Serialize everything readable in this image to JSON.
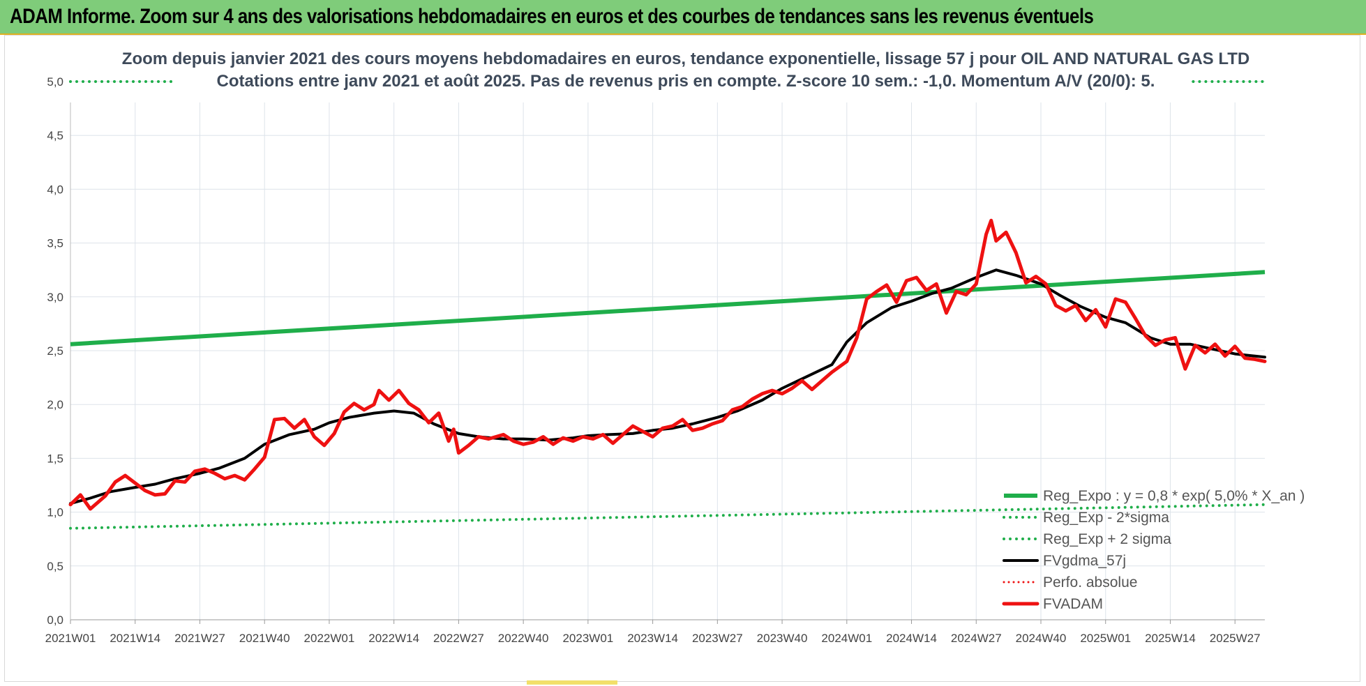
{
  "banner": {
    "title": "ADAM Informe. Zoom sur 4 ans des valorisations hebdomadaires en euros et des courbes de tendances sans les revenus éventuels"
  },
  "colors": {
    "banner_bg": "#7fcc7a",
    "trend": "#1fae4a",
    "fvgdma": "#000000",
    "fvadam": "#ee1111",
    "perfo": "#ee1111",
    "grid": "#dde3ea"
  },
  "chart_data": {
    "type": "line",
    "title_line1": "Zoom depuis janvier 2021 des cours moyens hebdomadaires en euros, tendance exponentielle, lissage 57 j pour OIL AND NATURAL GAS LTD",
    "title_line2": "Cotations entre janv 2021 et août 2025.  Pas de revenus pris en compte. Z-score 10 sem.: -1,0. Momentum A/V (20/0): 5.",
    "xlabel": "",
    "ylabel": "",
    "ylim": [
      0,
      5
    ],
    "y_ticks": [
      "0,0",
      "0,5",
      "1,0",
      "1,5",
      "2,0",
      "2,5",
      "3,0",
      "3,5",
      "4,0",
      "4,5",
      "5,0"
    ],
    "x_range": [
      "2021W01",
      "2025W33"
    ],
    "x_ticks": [
      "2021W01",
      "2021W14",
      "2021W27",
      "2021W40",
      "2022W01",
      "2022W14",
      "2022W27",
      "2022W40",
      "2023W01",
      "2023W14",
      "2023W27",
      "2023W40",
      "2024W01",
      "2024W14",
      "2024W27",
      "2024W40",
      "2025W01",
      "2025W14",
      "2025W27"
    ],
    "grid": true,
    "legend_position": "bottom-right",
    "series": [
      {
        "name": "Reg_Expo : y = 0,8 * exp( 5,0% *  X_an )",
        "style": "solid-thick",
        "points": [
          [
            "2021W01",
            2.56
          ],
          [
            "2025W33",
            3.23
          ]
        ]
      },
      {
        "name": "Reg_Exp - 2*sigma",
        "style": "dotted",
        "points": [
          [
            "2021W01",
            0.85
          ],
          [
            "2025W33",
            1.07
          ]
        ]
      },
      {
        "name": "Reg_Exp + 2 sigma",
        "style": "dotted",
        "points": [
          [
            "2021W01",
            5.0
          ],
          [
            "2021W40",
            5.0
          ],
          [
            "2025W01",
            5.0
          ],
          [
            "2025W33",
            5.0
          ]
        ],
        "note_visible_segments": [
          [
            "2021W01",
            "2021W22"
          ],
          [
            "2025W06",
            "2025W33"
          ]
        ]
      },
      {
        "name": "FVgdma_57j",
        "style": "solid",
        "points": [
          [
            "2021W01",
            1.08
          ],
          [
            "2021W05",
            1.13
          ],
          [
            "2021W09",
            1.19
          ],
          [
            "2021W14",
            1.23
          ],
          [
            "2021W18",
            1.26
          ],
          [
            "2021W22",
            1.31
          ],
          [
            "2021W27",
            1.36
          ],
          [
            "2021W31",
            1.41
          ],
          [
            "2021W36",
            1.5
          ],
          [
            "2021W40",
            1.63
          ],
          [
            "2021W45",
            1.72
          ],
          [
            "2021W50",
            1.77
          ],
          [
            "2022W01",
            1.83
          ],
          [
            "2022W05",
            1.88
          ],
          [
            "2022W10",
            1.92
          ],
          [
            "2022W14",
            1.94
          ],
          [
            "2022W18",
            1.92
          ],
          [
            "2022W22",
            1.82
          ],
          [
            "2022W27",
            1.73
          ],
          [
            "2022W31",
            1.7
          ],
          [
            "2022W36",
            1.68
          ],
          [
            "2022W40",
            1.68
          ],
          [
            "2022W45",
            1.67
          ],
          [
            "2022W50",
            1.69
          ],
          [
            "2023W01",
            1.71
          ],
          [
            "2023W05",
            1.72
          ],
          [
            "2023W10",
            1.73
          ],
          [
            "2023W14",
            1.76
          ],
          [
            "2023W18",
            1.78
          ],
          [
            "2023W22",
            1.82
          ],
          [
            "2023W27",
            1.88
          ],
          [
            "2023W31",
            1.94
          ],
          [
            "2023W36",
            2.04
          ],
          [
            "2023W40",
            2.15
          ],
          [
            "2023W45",
            2.26
          ],
          [
            "2023W50",
            2.37
          ],
          [
            "2024W01",
            2.58
          ],
          [
            "2024W05",
            2.76
          ],
          [
            "2024W10",
            2.9
          ],
          [
            "2024W14",
            2.96
          ],
          [
            "2024W18",
            3.03
          ],
          [
            "2024W22",
            3.08
          ],
          [
            "2024W27",
            3.18
          ],
          [
            "2024W31",
            3.25
          ],
          [
            "2024W35",
            3.2
          ],
          [
            "2024W40",
            3.12
          ],
          [
            "2024W44",
            3.01
          ],
          [
            "2024W48",
            2.91
          ],
          [
            "2025W01",
            2.81
          ],
          [
            "2025W05",
            2.76
          ],
          [
            "2025W10",
            2.62
          ],
          [
            "2025W14",
            2.56
          ],
          [
            "2025W18",
            2.56
          ],
          [
            "2025W22",
            2.52
          ],
          [
            "2025W27",
            2.47
          ],
          [
            "2025W33",
            2.44
          ]
        ]
      },
      {
        "name": "Perfo. absolue",
        "style": "dotted",
        "points": []
      },
      {
        "name": "FVADAM",
        "style": "solid-thick",
        "points": [
          [
            "2021W01",
            1.07
          ],
          [
            "2021W03",
            1.16
          ],
          [
            "2021W05",
            1.03
          ],
          [
            "2021W08",
            1.15
          ],
          [
            "2021W10",
            1.28
          ],
          [
            "2021W12",
            1.34
          ],
          [
            "2021W14",
            1.27
          ],
          [
            "2021W16",
            1.2
          ],
          [
            "2021W18",
            1.16
          ],
          [
            "2021W20",
            1.17
          ],
          [
            "2021W22",
            1.29
          ],
          [
            "2021W24",
            1.28
          ],
          [
            "2021W26",
            1.38
          ],
          [
            "2021W28",
            1.4
          ],
          [
            "2021W30",
            1.36
          ],
          [
            "2021W32",
            1.31
          ],
          [
            "2021W34",
            1.34
          ],
          [
            "2021W36",
            1.3
          ],
          [
            "2021W38",
            1.4
          ],
          [
            "2021W40",
            1.51
          ],
          [
            "2021W42",
            1.86
          ],
          [
            "2021W44",
            1.87
          ],
          [
            "2021W46",
            1.78
          ],
          [
            "2021W48",
            1.86
          ],
          [
            "2021W50",
            1.7
          ],
          [
            "2021W52",
            1.62
          ],
          [
            "2022W02",
            1.73
          ],
          [
            "2022W04",
            1.93
          ],
          [
            "2022W06",
            2.01
          ],
          [
            "2022W08",
            1.95
          ],
          [
            "2022W10",
            2.0
          ],
          [
            "2022W11",
            2.13
          ],
          [
            "2022W13",
            2.04
          ],
          [
            "2022W15",
            2.13
          ],
          [
            "2022W17",
            2.01
          ],
          [
            "2022W19",
            1.95
          ],
          [
            "2022W21",
            1.83
          ],
          [
            "2022W23",
            1.92
          ],
          [
            "2022W25",
            1.66
          ],
          [
            "2022W26",
            1.77
          ],
          [
            "2022W27",
            1.55
          ],
          [
            "2022W29",
            1.62
          ],
          [
            "2022W31",
            1.7
          ],
          [
            "2022W33",
            1.68
          ],
          [
            "2022W36",
            1.72
          ],
          [
            "2022W38",
            1.66
          ],
          [
            "2022W40",
            1.63
          ],
          [
            "2022W42",
            1.65
          ],
          [
            "2022W44",
            1.7
          ],
          [
            "2022W46",
            1.63
          ],
          [
            "2022W48",
            1.69
          ],
          [
            "2022W50",
            1.66
          ],
          [
            "2022W52",
            1.7
          ],
          [
            "2023W02",
            1.68
          ],
          [
            "2023W04",
            1.72
          ],
          [
            "2023W06",
            1.64
          ],
          [
            "2023W08",
            1.72
          ],
          [
            "2023W10",
            1.8
          ],
          [
            "2023W12",
            1.75
          ],
          [
            "2023W14",
            1.7
          ],
          [
            "2023W16",
            1.78
          ],
          [
            "2023W18",
            1.8
          ],
          [
            "2023W20",
            1.86
          ],
          [
            "2023W22",
            1.76
          ],
          [
            "2023W24",
            1.78
          ],
          [
            "2023W26",
            1.82
          ],
          [
            "2023W28",
            1.85
          ],
          [
            "2023W30",
            1.95
          ],
          [
            "2023W32",
            1.98
          ],
          [
            "2023W34",
            2.05
          ],
          [
            "2023W36",
            2.1
          ],
          [
            "2023W38",
            2.13
          ],
          [
            "2023W40",
            2.1
          ],
          [
            "2023W42",
            2.15
          ],
          [
            "2023W44",
            2.22
          ],
          [
            "2023W46",
            2.14
          ],
          [
            "2023W48",
            2.22
          ],
          [
            "2023W50",
            2.3
          ],
          [
            "2024W01",
            2.4
          ],
          [
            "2024W03",
            2.62
          ],
          [
            "2024W05",
            2.98
          ],
          [
            "2024W07",
            3.05
          ],
          [
            "2024W09",
            3.11
          ],
          [
            "2024W11",
            2.95
          ],
          [
            "2024W13",
            3.15
          ],
          [
            "2024W15",
            3.18
          ],
          [
            "2024W17",
            3.06
          ],
          [
            "2024W19",
            3.12
          ],
          [
            "2024W21",
            2.85
          ],
          [
            "2024W23",
            3.05
          ],
          [
            "2024W25",
            3.02
          ],
          [
            "2024W27",
            3.12
          ],
          [
            "2024W29",
            3.58
          ],
          [
            "2024W30",
            3.71
          ],
          [
            "2024W31",
            3.52
          ],
          [
            "2024W33",
            3.6
          ],
          [
            "2024W35",
            3.41
          ],
          [
            "2024W37",
            3.13
          ],
          [
            "2024W39",
            3.19
          ],
          [
            "2024W41",
            3.12
          ],
          [
            "2024W43",
            2.92
          ],
          [
            "2024W45",
            2.87
          ],
          [
            "2024W47",
            2.92
          ],
          [
            "2024W49",
            2.78
          ],
          [
            "2024W51",
            2.88
          ],
          [
            "2025W01",
            2.72
          ],
          [
            "2025W03",
            2.98
          ],
          [
            "2025W05",
            2.95
          ],
          [
            "2025W07",
            2.8
          ],
          [
            "2025W09",
            2.64
          ],
          [
            "2025W11",
            2.55
          ],
          [
            "2025W13",
            2.6
          ],
          [
            "2025W15",
            2.62
          ],
          [
            "2025W17",
            2.33
          ],
          [
            "2025W19",
            2.55
          ],
          [
            "2025W21",
            2.48
          ],
          [
            "2025W23",
            2.56
          ],
          [
            "2025W25",
            2.45
          ],
          [
            "2025W27",
            2.54
          ],
          [
            "2025W29",
            2.43
          ],
          [
            "2025W31",
            2.42
          ],
          [
            "2025W33",
            2.4
          ]
        ]
      }
    ]
  }
}
